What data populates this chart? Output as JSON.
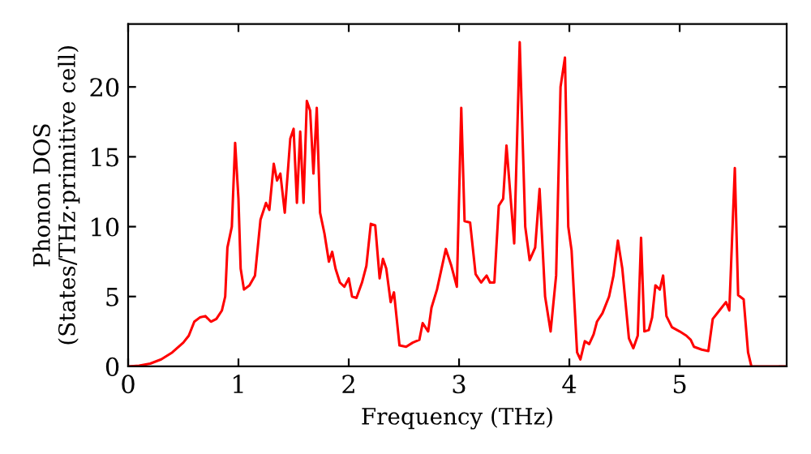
{
  "chart_data": {
    "type": "line",
    "xlabel": "Frequency (THz)",
    "ylabel": "Phonon DOS\n(States/THz·primitive cell)",
    "xlim": [
      0,
      5.97
    ],
    "ylim": [
      0,
      24.5
    ],
    "xticks": [
      0,
      1,
      2,
      3,
      4,
      5
    ],
    "yticks": [
      0,
      5,
      10,
      15,
      20
    ],
    "grid": false,
    "legend": false,
    "marker": "none",
    "line_style": "solid",
    "series": [
      {
        "color": "#ff0000",
        "x": [
          0,
          0.1,
          0.2,
          0.3,
          0.4,
          0.5,
          0.55,
          0.6,
          0.65,
          0.7,
          0.75,
          0.8,
          0.85,
          0.88,
          0.9,
          0.94,
          0.97,
          1.0,
          1.02,
          1.05,
          1.1,
          1.15,
          1.2,
          1.25,
          1.28,
          1.32,
          1.35,
          1.38,
          1.42,
          1.47,
          1.5,
          1.53,
          1.56,
          1.59,
          1.62,
          1.65,
          1.68,
          1.71,
          1.74,
          1.78,
          1.82,
          1.85,
          1.88,
          1.92,
          1.96,
          2.0,
          2.03,
          2.07,
          2.12,
          2.16,
          2.2,
          2.24,
          2.28,
          2.31,
          2.34,
          2.38,
          2.41,
          2.46,
          2.52,
          2.58,
          2.64,
          2.67,
          2.72,
          2.75,
          2.8,
          2.88,
          2.93,
          2.98,
          3.02,
          3.05,
          3.1,
          3.15,
          3.2,
          3.25,
          3.28,
          3.32,
          3.36,
          3.4,
          3.43,
          3.5,
          3.55,
          3.6,
          3.64,
          3.69,
          3.73,
          3.78,
          3.83,
          3.88,
          3.92,
          3.96,
          3.99,
          4.02,
          4.07,
          4.1,
          4.14,
          4.18,
          4.22,
          4.25,
          4.3,
          4.36,
          4.4,
          4.44,
          4.48,
          4.54,
          4.58,
          4.62,
          4.65,
          4.68,
          4.72,
          4.75,
          4.78,
          4.82,
          4.85,
          4.88,
          4.93,
          5.0,
          5.06,
          5.1,
          5.13,
          5.2,
          5.26,
          5.3,
          5.36,
          5.42,
          5.45,
          5.5,
          5.53,
          5.58,
          5.62,
          5.65,
          5.95
        ],
        "values": [
          0,
          0.05,
          0.2,
          0.5,
          1.0,
          1.7,
          2.2,
          3.2,
          3.5,
          3.6,
          3.2,
          3.4,
          4,
          5,
          8.5,
          10,
          16,
          12,
          7,
          5.5,
          5.8,
          6.5,
          10.5,
          11.7,
          11.2,
          14.5,
          13.3,
          13.8,
          11,
          16.3,
          17,
          11.7,
          16.8,
          11.7,
          19,
          18.3,
          13.8,
          18.5,
          11,
          9.5,
          7.5,
          8.2,
          7,
          6,
          5.7,
          6.3,
          5,
          4.9,
          6,
          7.2,
          10.2,
          10.1,
          6.3,
          7.7,
          7,
          4.6,
          5.3,
          1.5,
          1.4,
          1.7,
          1.9,
          3.1,
          2.5,
          4.2,
          5.5,
          8.4,
          7.2,
          5.7,
          18.5,
          10.4,
          10.3,
          6.6,
          6,
          6.5,
          6,
          6,
          11.5,
          12,
          15.8,
          8.8,
          23.2,
          10,
          7.6,
          8.5,
          12.7,
          5,
          2.5,
          6.5,
          20,
          22.1,
          10,
          8.3,
          1,
          0.5,
          1.8,
          1.6,
          2.3,
          3.2,
          3.8,
          5,
          6.5,
          9,
          7,
          2,
          1.3,
          2.2,
          9.2,
          2.5,
          2.6,
          3.5,
          5.8,
          5.5,
          6.5,
          3.6,
          2.8,
          2.5,
          2.2,
          1.9,
          1.4,
          1.2,
          1.1,
          3.4,
          4,
          4.6,
          4,
          14.2,
          5.1,
          4.8,
          1,
          0,
          0
        ]
      }
    ]
  }
}
